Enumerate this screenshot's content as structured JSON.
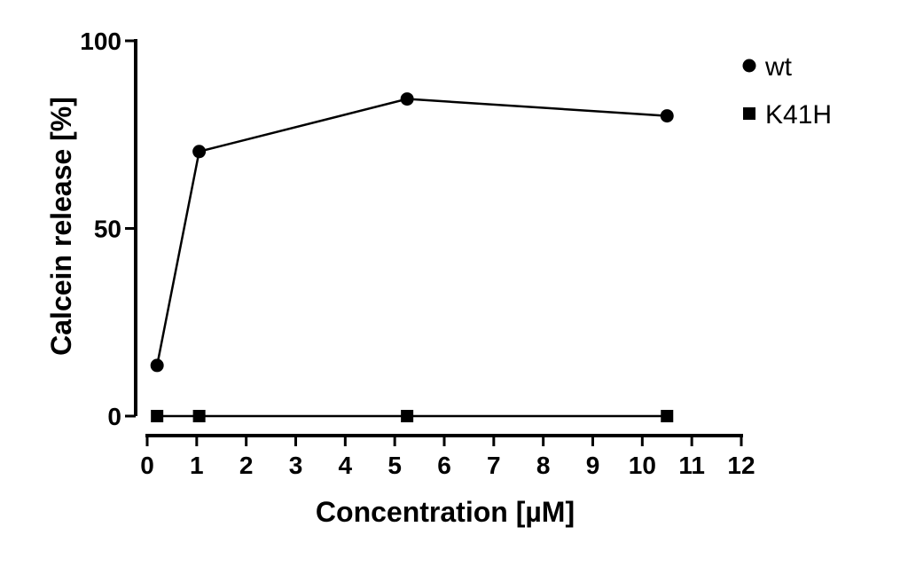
{
  "chart_data": {
    "type": "line",
    "title": "",
    "xlabel": "Concentration [µM]",
    "ylabel": "Calcein release [%]",
    "xlim": [
      0,
      12
    ],
    "ylim": [
      0,
      100
    ],
    "xticks": [
      0,
      1,
      2,
      3,
      4,
      5,
      6,
      7,
      8,
      9,
      10,
      11,
      12
    ],
    "yticks": [
      0,
      50,
      100
    ],
    "grid": false,
    "legend": "top-right",
    "series": [
      {
        "name": "wt",
        "marker": "circle",
        "x": [
          0.2,
          1.05,
          5.25,
          10.5
        ],
        "y": [
          13.5,
          70.5,
          84.5,
          80
        ]
      },
      {
        "name": "K41H",
        "marker": "square",
        "x": [
          0.2,
          1.05,
          5.25,
          10.5
        ],
        "y": [
          0,
          0,
          0,
          0
        ]
      }
    ]
  }
}
